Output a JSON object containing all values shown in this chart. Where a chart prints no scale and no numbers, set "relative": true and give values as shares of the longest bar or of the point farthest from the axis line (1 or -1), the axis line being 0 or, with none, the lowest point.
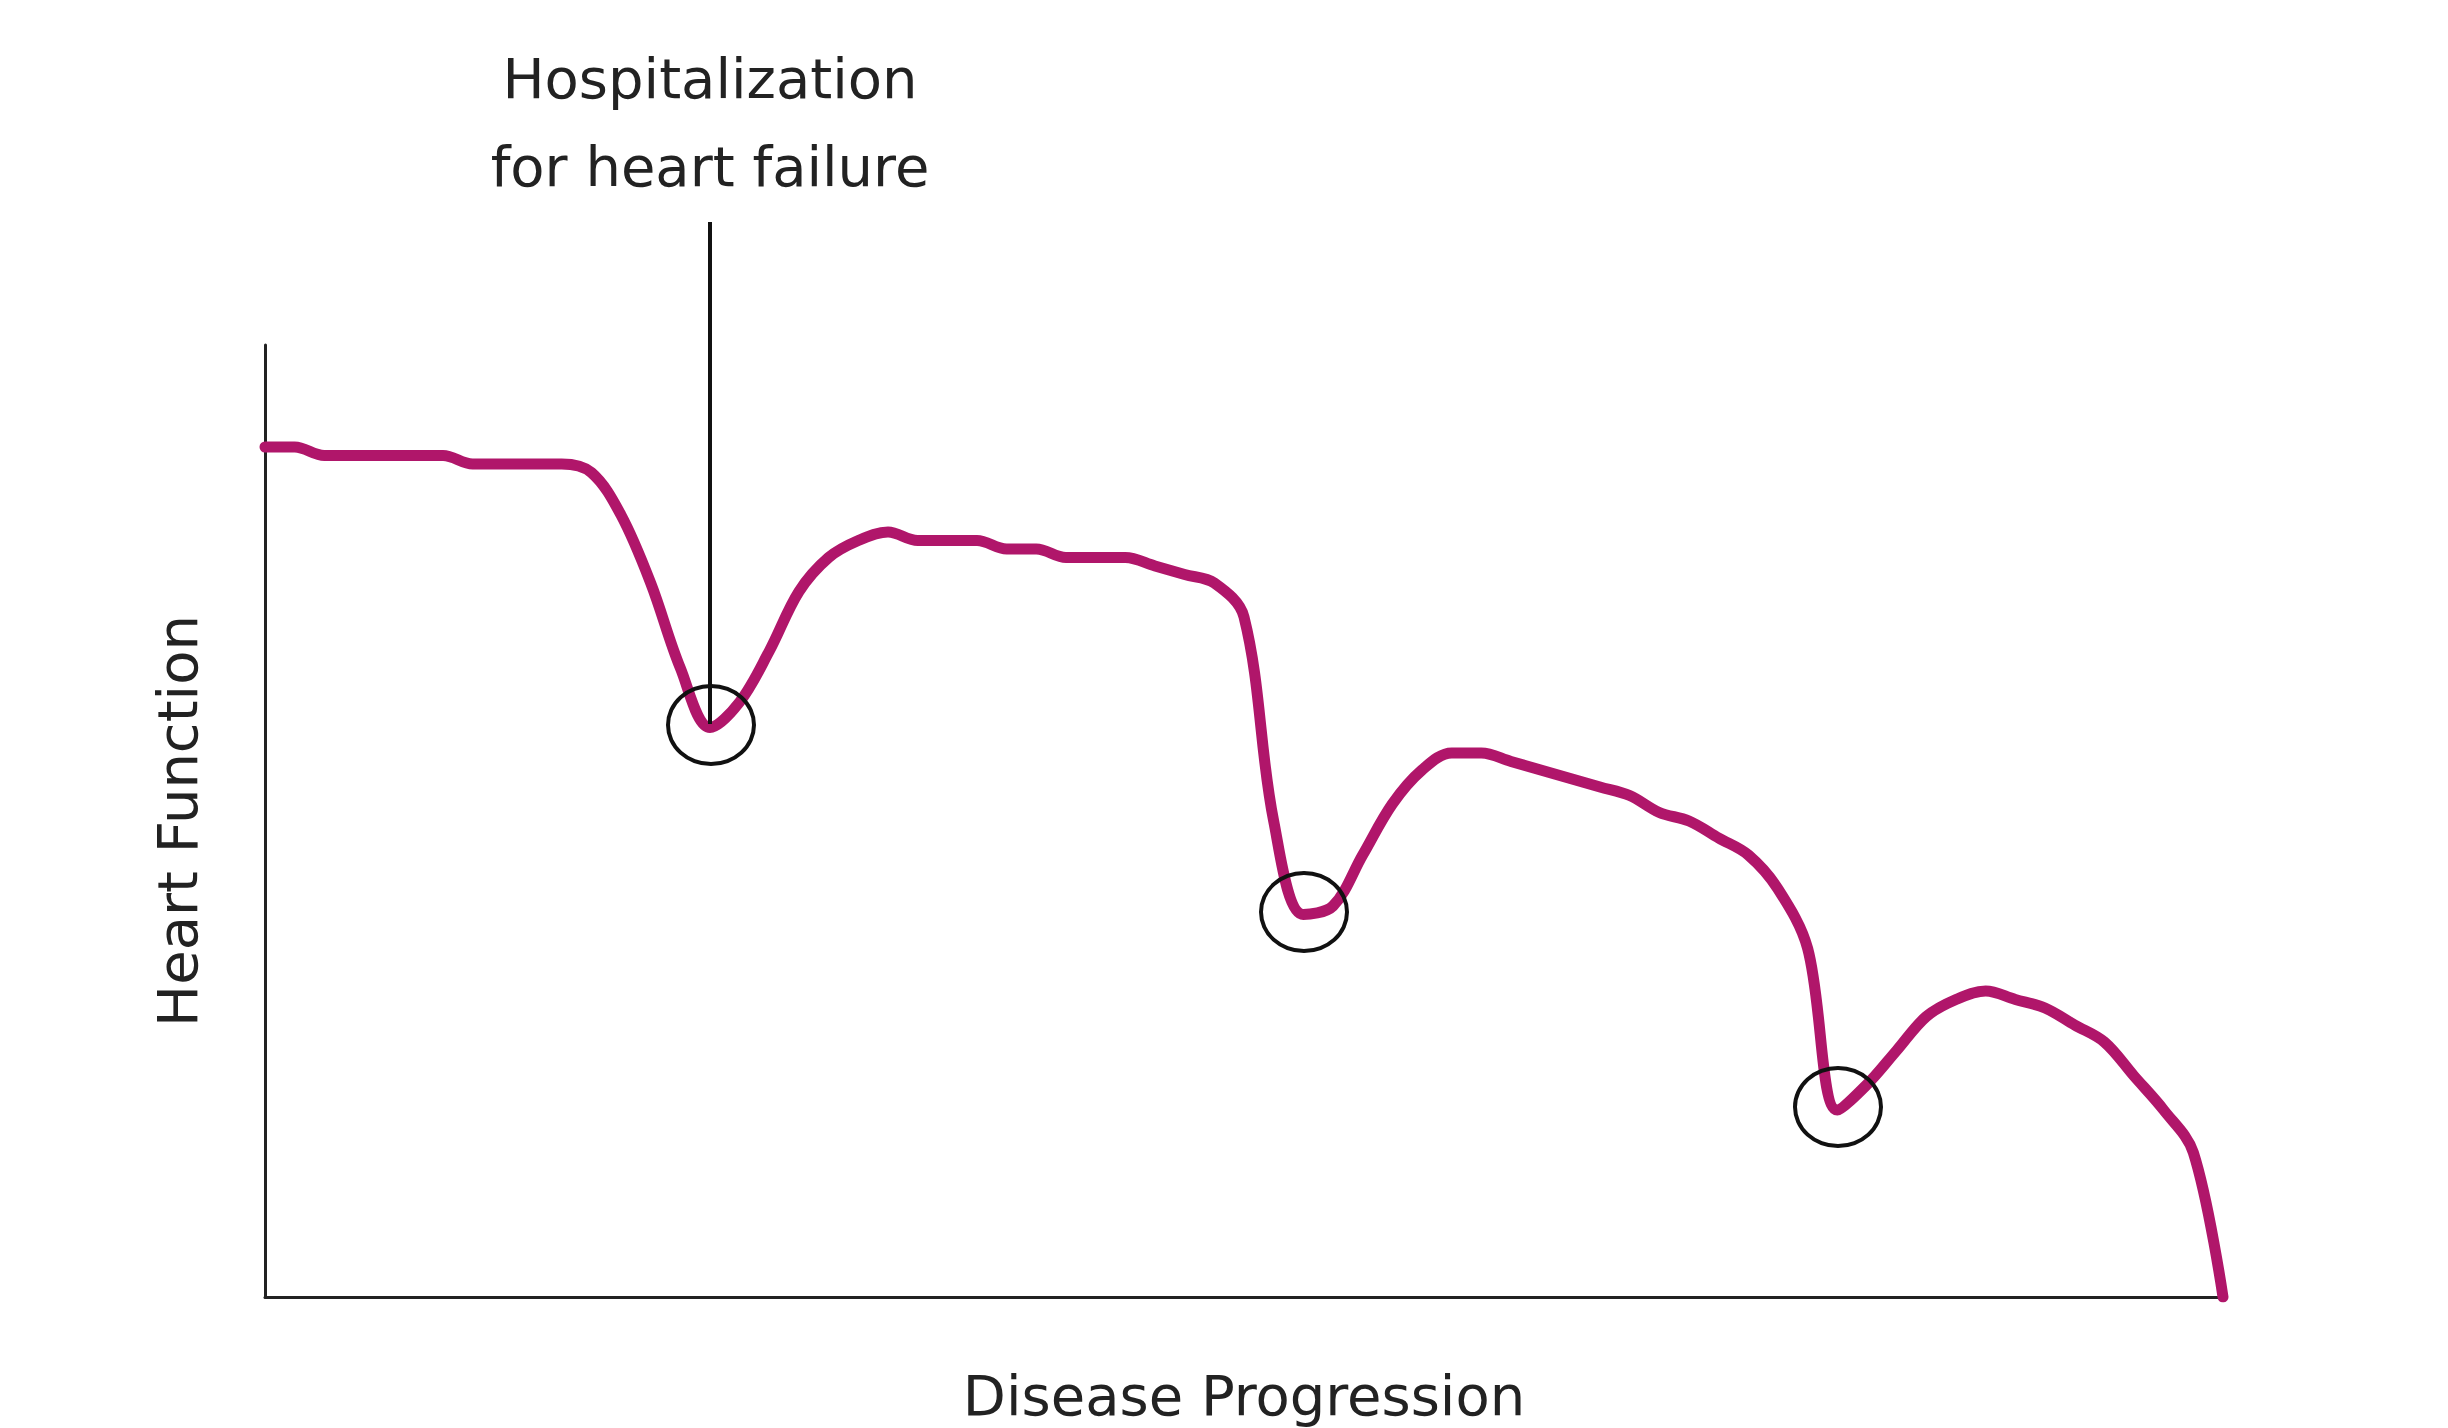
{
  "chart_data": {
    "type": "line",
    "relative": true,
    "xlabel": "Disease Progression",
    "ylabel": "Heart Function",
    "annotations": [
      "Hospitalization\nfor heart failure"
    ],
    "categories": [
      null,
      null,
      null,
      null,
      null,
      null,
      null,
      null,
      null,
      null,
      null,
      null,
      null,
      null,
      null,
      null,
      null,
      null,
      null,
      null,
      null,
      null,
      null,
      null,
      null,
      null,
      null,
      null,
      null,
      null,
      null,
      null,
      null,
      null,
      null,
      null,
      null,
      null,
      null,
      null,
      null,
      null,
      null,
      null,
      null,
      null,
      null,
      null,
      null,
      null,
      null,
      null,
      null,
      null,
      null,
      null,
      null,
      null,
      null,
      null,
      null,
      null,
      null,
      null,
      null,
      null,
      null
    ],
    "series": [
      {
        "color": "#b0166a",
        "values": [
          1.0,
          1.0,
          0.99,
          0.99,
          0.99,
          0.99,
          0.99,
          0.98,
          0.98,
          0.98,
          0.98,
          0.97,
          0.92,
          0.84,
          0.74,
          0.67,
          0.7,
          0.76,
          0.83,
          0.87,
          0.89,
          0.9,
          0.89,
          0.89,
          0.89,
          0.88,
          0.88,
          0.87,
          0.87,
          0.87,
          0.86,
          0.85,
          0.84,
          0.8,
          0.56,
          0.45,
          0.46,
          0.52,
          0.58,
          0.62,
          0.64,
          0.64,
          0.63,
          0.62,
          0.61,
          0.6,
          0.59,
          0.57,
          0.56,
          0.54,
          0.52,
          0.48,
          0.41,
          0.22,
          0.25,
          0.29,
          0.33,
          0.35,
          0.36,
          0.35,
          0.34,
          0.32,
          0.3,
          0.26,
          0.22,
          0.17,
          0
        ]
      }
    ],
    "grid": false,
    "line_style": "solid"
  }
}
